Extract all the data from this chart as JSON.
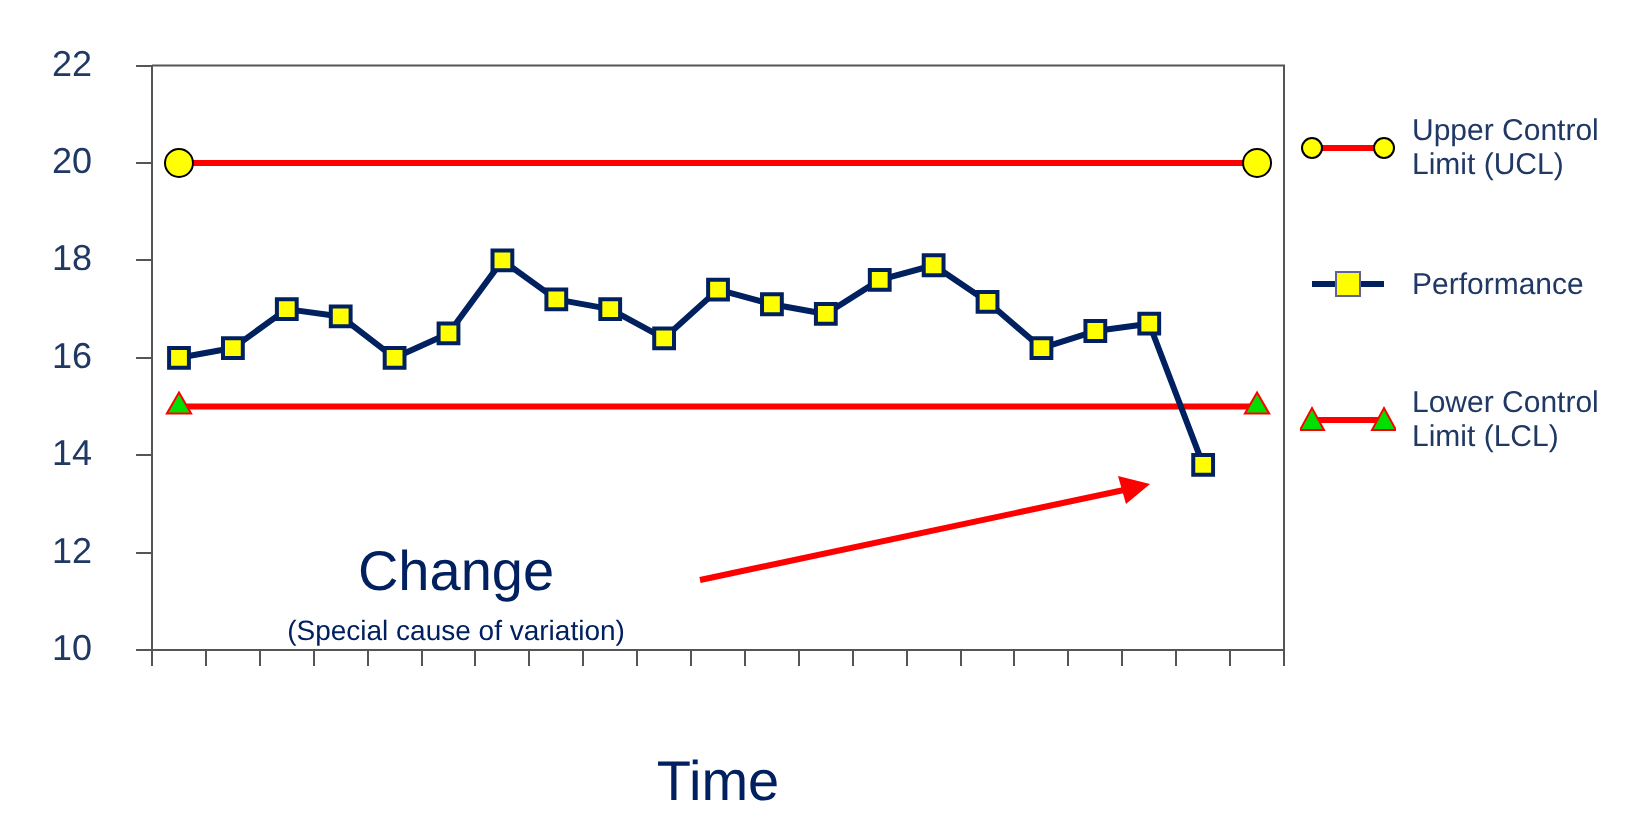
{
  "chart_data": {
    "type": "line",
    "xlabel": "Time",
    "categories": [
      null,
      null,
      null,
      null,
      null,
      null,
      null,
      null,
      null,
      null,
      null,
      null,
      null,
      null,
      null,
      null,
      null,
      null,
      null,
      null,
      null
    ],
    "series": [
      {
        "name": "Upper Control Limit (UCL)",
        "color": "#ff0000",
        "marker": "none",
        "values": [
          20,
          20,
          20,
          20,
          20,
          20,
          20,
          20,
          20,
          20,
          20,
          20,
          20,
          20,
          20,
          20,
          20,
          20,
          20,
          20,
          20
        ]
      },
      {
        "type": "scatter",
        "color": "#ffff00",
        "marker": "circle",
        "values": [
          20,
          null,
          null,
          null,
          null,
          null,
          null,
          null,
          null,
          null,
          null,
          null,
          null,
          null,
          null,
          null,
          null,
          null,
          null,
          null,
          20
        ]
      },
      {
        "name": "Performance",
        "color": "#002060",
        "marker": "square",
        "values": [
          16.0,
          16.2,
          17.0,
          16.85,
          16.0,
          16.5,
          18.0,
          17.2,
          17.0,
          16.4,
          17.4,
          17.1,
          16.9,
          17.6,
          17.9,
          17.15,
          16.2,
          16.55,
          16.7,
          13.8,
          null
        ]
      },
      {
        "name": "Lower Control Limit (LCL)",
        "color": "#ff0000",
        "marker": "none",
        "values": [
          15,
          15,
          15,
          15,
          15,
          15,
          15,
          15,
          15,
          15,
          15,
          15,
          15,
          15,
          15,
          15,
          15,
          15,
          15,
          15,
          15
        ]
      },
      {
        "type": "scatter",
        "color": "#00e000",
        "marker": "triangle",
        "values": [
          15,
          null,
          null,
          null,
          null,
          null,
          null,
          null,
          null,
          null,
          null,
          null,
          null,
          null,
          null,
          null,
          null,
          null,
          null,
          null,
          15
        ]
      }
    ],
    "ylim": [
      10,
      22
    ],
    "yticks": [
      10,
      12,
      14,
      16,
      18,
      20,
      22
    ],
    "grid": false,
    "legend": "right",
    "annotations": [
      "Change",
      "(Special cause of variation)"
    ]
  }
}
